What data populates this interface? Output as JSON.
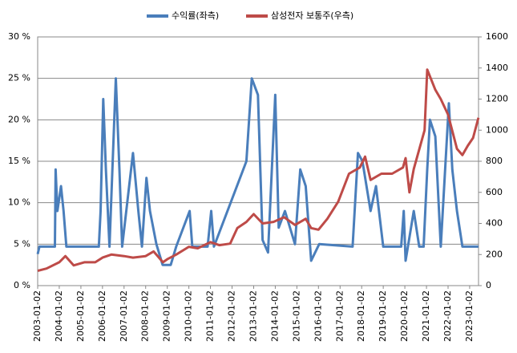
{
  "chart_data": {
    "type": "line",
    "legend": "top",
    "grid": true,
    "xlim": [
      "2003-01-02",
      "2023-06-01"
    ],
    "xticks": [
      "2003-01-02",
      "2004-01-02",
      "2005-01-02",
      "2006-01-02",
      "2007-01-02",
      "2008-01-02",
      "2009-01-02",
      "2010-01-02",
      "2011-01-02",
      "2012-01-02",
      "2013-01-02",
      "2014-01-02",
      "2015-01-02",
      "2016-01-02",
      "2017-01-02",
      "2018-01-02",
      "2019-01-02",
      "2020-01-02",
      "2021-01-02",
      "2022-01-02",
      "2023-01-02"
    ],
    "ylim": [
      0,
      30
    ],
    "yticks": [
      {
        "value": 0,
        "label": "0 %"
      },
      {
        "value": 5,
        "label": "5 %"
      },
      {
        "value": 10,
        "label": "10 %"
      },
      {
        "value": 15,
        "label": "15 %"
      },
      {
        "value": 20,
        "label": "20 %"
      },
      {
        "value": 25,
        "label": "25 %"
      },
      {
        "value": 30,
        "label": "30 %"
      }
    ],
    "y2lim": [
      0,
      1600
    ],
    "y2ticks": [
      0,
      200,
      400,
      600,
      800,
      1000,
      1200,
      1400,
      1600
    ],
    "series": [
      {
        "name": "수익률(좌측)",
        "color": "#4a7ebb",
        "axis": "y",
        "x": [
          "2003-01-02",
          "2003-02-01",
          "2003-10-20",
          "2003-11-01",
          "2003-12-01",
          "2004-02-01",
          "2004-03-15",
          "2004-05-01",
          "2004-07-01",
          "2004-08-01",
          "2005-11-01",
          "2005-12-01",
          "2006-01-15",
          "2006-03-01",
          "2006-05-01",
          "2006-08-15",
          "2006-10-15",
          "2006-12-01",
          "2007-06-01",
          "2007-09-01",
          "2007-11-01",
          "2008-01-15",
          "2008-03-15",
          "2008-07-01",
          "2008-10-15",
          "2009-03-01",
          "2009-06-01",
          "2010-01-15",
          "2010-03-01",
          "2010-11-15",
          "2011-01-15",
          "2011-03-01",
          "2012-09-01",
          "2012-12-01",
          "2013-03-15",
          "2013-06-01",
          "2013-09-01",
          "2014-01-02",
          "2014-03-01",
          "2014-06-15",
          "2014-12-01",
          "2015-03-01",
          "2015-06-01",
          "2015-09-01",
          "2016-01-15",
          "2017-08-01",
          "2017-11-01",
          "2018-01-15",
          "2018-06-01",
          "2018-09-01",
          "2019-01-02",
          "2019-11-01",
          "2019-12-15",
          "2020-01-15",
          "2020-06-01",
          "2020-09-01",
          "2020-11-15",
          "2021-01-15",
          "2021-03-01",
          "2021-06-01",
          "2021-09-01",
          "2022-01-15",
          "2022-03-15",
          "2022-06-01",
          "2022-09-01",
          "2023-05-30"
        ],
        "values": [
          3.8,
          4.7,
          4.7,
          14,
          9,
          12,
          9,
          4.7,
          4.7,
          4.7,
          4.7,
          9,
          22.5,
          14,
          4.7,
          25,
          14,
          4.7,
          16,
          9,
          4.7,
          13,
          9,
          5,
          2.5,
          2.5,
          4.7,
          9,
          4.7,
          4.7,
          9,
          4.7,
          15,
          25,
          23,
          5.5,
          4,
          23,
          7,
          9,
          5,
          14,
          12,
          3,
          5,
          4.7,
          16,
          15,
          9,
          12,
          4.7,
          4.7,
          9,
          3,
          9,
          4.7,
          4.7,
          14,
          20,
          18,
          4.7,
          22,
          14,
          9,
          4.7,
          4.7
        ]
      },
      {
        "name": "삼성전자 보통주(우측)",
        "color": "#be4b48",
        "axis": "y2",
        "x": [
          "2003-01-02",
          "2003-06-01",
          "2004-01-02",
          "2004-04-15",
          "2004-09-01",
          "2005-03-01",
          "2005-09-01",
          "2006-01-02",
          "2006-06-01",
          "2007-01-02",
          "2007-06-01",
          "2008-01-02",
          "2008-05-15",
          "2008-10-20",
          "2009-01-02",
          "2009-06-01",
          "2010-01-02",
          "2010-06-01",
          "2011-01-02",
          "2011-06-01",
          "2011-12-01",
          "2012-04-01",
          "2012-09-01",
          "2013-01-02",
          "2013-06-01",
          "2013-12-01",
          "2014-06-01",
          "2014-12-01",
          "2015-06-01",
          "2015-09-01",
          "2016-01-02",
          "2016-06-01",
          "2016-12-01",
          "2017-06-01",
          "2017-12-01",
          "2018-03-01",
          "2018-06-01",
          "2018-12-01",
          "2019-06-01",
          "2019-12-01",
          "2020-01-15",
          "2020-03-20",
          "2020-06-01",
          "2020-12-01",
          "2021-01-15",
          "2021-06-01",
          "2021-09-01",
          "2022-01-02",
          "2022-06-01",
          "2022-09-01",
          "2022-12-01",
          "2023-03-01",
          "2023-05-30"
        ],
        "values": [
          95,
          110,
          150,
          190,
          130,
          150,
          150,
          180,
          200,
          190,
          180,
          190,
          220,
          150,
          170,
          200,
          250,
          240,
          280,
          260,
          270,
          370,
          410,
          460,
          400,
          410,
          440,
          390,
          430,
          370,
          360,
          430,
          540,
          720,
          760,
          830,
          680,
          720,
          720,
          760,
          820,
          600,
          750,
          1000,
          1390,
          1260,
          1200,
          1100,
          880,
          840,
          900,
          950,
          1080
        ]
      }
    ]
  }
}
